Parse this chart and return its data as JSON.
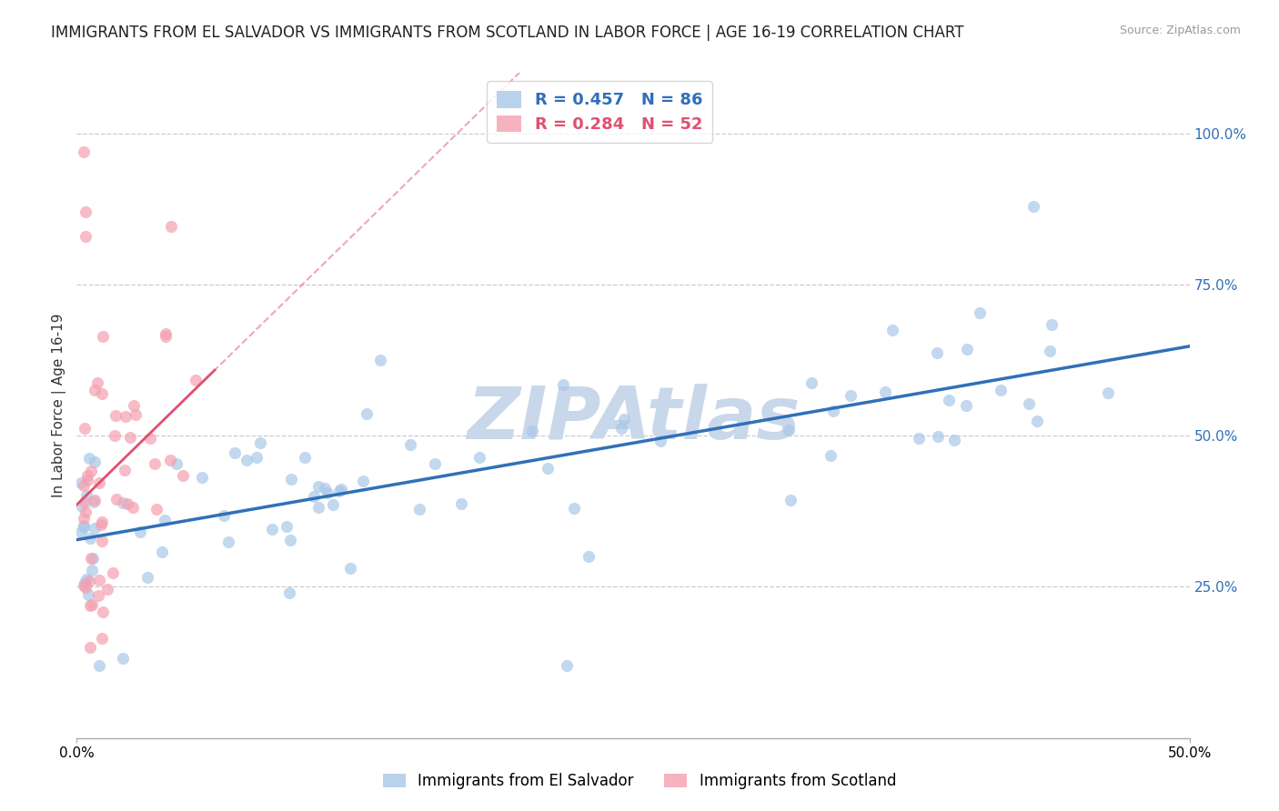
{
  "title": "IMMIGRANTS FROM EL SALVADOR VS IMMIGRANTS FROM SCOTLAND IN LABOR FORCE | AGE 16-19 CORRELATION CHART",
  "source": "Source: ZipAtlas.com",
  "ylabel": "In Labor Force | Age 16-19",
  "legend_label_blue": "Immigrants from El Salvador",
  "legend_label_pink": "Immigrants from Scotland",
  "r_blue": 0.457,
  "n_blue": 86,
  "r_pink": 0.284,
  "n_pink": 52,
  "color_blue": "#a8c8e8",
  "color_pink": "#f4a0b0",
  "line_color_blue": "#3070b8",
  "line_color_pink": "#e05070",
  "xlim": [
    0.0,
    0.5
  ],
  "ylim": [
    0.0,
    1.1
  ],
  "ytick_positions": [
    0.25,
    0.5,
    0.75,
    1.0
  ],
  "ytick_labels": [
    "25.0%",
    "50.0%",
    "75.0%",
    "100.0%"
  ],
  "watermark": "ZIPAtlas",
  "watermark_color": "#c8d8ea",
  "background_color": "#ffffff",
  "title_fontsize": 12,
  "axis_label_fontsize": 11,
  "tick_fontsize": 11,
  "blue_intercept": 0.36,
  "blue_slope": 0.56,
  "pink_intercept": 0.35,
  "pink_slope": 4.5
}
